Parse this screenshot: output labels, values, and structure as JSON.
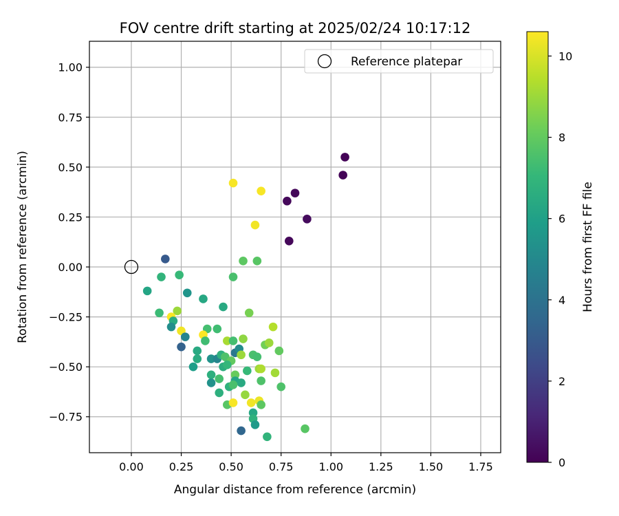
{
  "chart_data": {
    "type": "scatter",
    "title": "FOV centre drift starting at 2025/02/24 10:17:12",
    "xlabel": "Angular distance from reference (arcmin)",
    "ylabel": "Rotation from reference (arcmin)",
    "xlim": [
      -0.21,
      1.85
    ],
    "ylim": [
      -0.93,
      1.13
    ],
    "xticks": [
      0.0,
      0.25,
      0.5,
      0.75,
      1.0,
      1.25,
      1.5,
      1.75
    ],
    "xtick_labels": [
      "0.00",
      "0.25",
      "0.50",
      "0.75",
      "1.00",
      "1.25",
      "1.50",
      "1.75"
    ],
    "yticks": [
      -0.75,
      -0.5,
      -0.25,
      0.0,
      0.25,
      0.5,
      0.75,
      1.0
    ],
    "ytick_labels": [
      "−0.75",
      "−0.50",
      "−0.25",
      "0.00",
      "0.25",
      "0.50",
      "0.75",
      "1.00"
    ],
    "grid": true,
    "legend": {
      "position": "top-right",
      "entries": [
        "Reference platepar"
      ]
    },
    "reference_point": {
      "x": 0.0,
      "y": 0.0
    },
    "colorbar": {
      "label": "Hours from first FF file",
      "colormap": "viridis",
      "range": [
        0,
        10.6
      ],
      "ticks": [
        0,
        2,
        4,
        6,
        8,
        10
      ],
      "tick_labels": [
        "0",
        "2",
        "4",
        "6",
        "8",
        "10"
      ]
    },
    "points": [
      [
        1.07,
        0.55,
        0.1
      ],
      [
        1.06,
        0.46,
        0.1
      ],
      [
        0.82,
        0.37,
        0.2
      ],
      [
        0.78,
        0.33,
        0.2
      ],
      [
        0.88,
        0.24,
        0.3
      ],
      [
        0.79,
        0.13,
        0.2
      ],
      [
        0.51,
        0.42,
        10.5
      ],
      [
        0.65,
        0.38,
        10.5
      ],
      [
        0.62,
        0.21,
        10.4
      ],
      [
        0.17,
        0.04,
        3.0
      ],
      [
        0.56,
        0.03,
        7.9
      ],
      [
        0.63,
        0.03,
        7.8
      ],
      [
        0.08,
        -0.12,
        6.2
      ],
      [
        0.15,
        -0.05,
        6.9
      ],
      [
        0.24,
        -0.04,
        7.1
      ],
      [
        0.51,
        -0.05,
        7.5
      ],
      [
        0.28,
        -0.13,
        5.5
      ],
      [
        0.36,
        -0.16,
        6.3
      ],
      [
        0.46,
        -0.2,
        6.4
      ],
      [
        0.14,
        -0.23,
        7.2
      ],
      [
        0.23,
        -0.22,
        9.0
      ],
      [
        0.2,
        -0.25,
        10.5
      ],
      [
        0.21,
        -0.27,
        6.5
      ],
      [
        0.2,
        -0.3,
        5.2
      ],
      [
        0.25,
        -0.32,
        10.4
      ],
      [
        0.27,
        -0.35,
        4.8
      ],
      [
        0.38,
        -0.31,
        7.4
      ],
      [
        0.43,
        -0.31,
        7.3
      ],
      [
        0.59,
        -0.23,
        8.4
      ],
      [
        0.36,
        -0.34,
        10.6
      ],
      [
        0.37,
        -0.37,
        7.3
      ],
      [
        0.25,
        -0.4,
        3.3
      ],
      [
        0.33,
        -0.42,
        6.4
      ],
      [
        0.48,
        -0.37,
        9.2
      ],
      [
        0.51,
        -0.37,
        7.4
      ],
      [
        0.56,
        -0.36,
        8.8
      ],
      [
        0.71,
        -0.3,
        9.4
      ],
      [
        0.4,
        -0.46,
        5.4
      ],
      [
        0.43,
        -0.46,
        4.9
      ],
      [
        0.45,
        -0.44,
        6.8
      ],
      [
        0.47,
        -0.45,
        7.6
      ],
      [
        0.5,
        -0.47,
        8.0
      ],
      [
        0.52,
        -0.43,
        4.2
      ],
      [
        0.54,
        -0.41,
        5.1
      ],
      [
        0.55,
        -0.44,
        9.0
      ],
      [
        0.61,
        -0.44,
        7.5
      ],
      [
        0.63,
        -0.45,
        7.4
      ],
      [
        0.67,
        -0.39,
        8.3
      ],
      [
        0.69,
        -0.38,
        9.0
      ],
      [
        0.74,
        -0.42,
        8.0
      ],
      [
        0.33,
        -0.46,
        6.5
      ],
      [
        0.31,
        -0.5,
        5.9
      ],
      [
        0.46,
        -0.5,
        6.6
      ],
      [
        0.48,
        -0.49,
        7.0
      ],
      [
        0.52,
        -0.54,
        8.1
      ],
      [
        0.4,
        -0.54,
        6.7
      ],
      [
        0.44,
        -0.56,
        7.4
      ],
      [
        0.52,
        -0.57,
        6.2
      ],
      [
        0.55,
        -0.58,
        6.4
      ],
      [
        0.58,
        -0.52,
        7.1
      ],
      [
        0.64,
        -0.51,
        9.0
      ],
      [
        0.65,
        -0.51,
        9.3
      ],
      [
        0.65,
        -0.57,
        7.6
      ],
      [
        0.72,
        -0.53,
        9.1
      ],
      [
        0.75,
        -0.6,
        7.6
      ],
      [
        0.4,
        -0.58,
        5.4
      ],
      [
        0.44,
        -0.63,
        6.7
      ],
      [
        0.49,
        -0.6,
        6.8
      ],
      [
        0.51,
        -0.59,
        7.5
      ],
      [
        0.57,
        -0.64,
        8.9
      ],
      [
        0.48,
        -0.69,
        7.8
      ],
      [
        0.51,
        -0.68,
        10.5
      ],
      [
        0.6,
        -0.68,
        10.4
      ],
      [
        0.64,
        -0.67,
        10.3
      ],
      [
        0.65,
        -0.69,
        7.9
      ],
      [
        0.61,
        -0.73,
        6.3
      ],
      [
        0.61,
        -0.76,
        6.8
      ],
      [
        0.62,
        -0.79,
        5.7
      ],
      [
        0.55,
        -0.82,
        3.5
      ],
      [
        0.68,
        -0.85,
        6.9
      ],
      [
        0.87,
        -0.81,
        7.8
      ]
    ]
  }
}
